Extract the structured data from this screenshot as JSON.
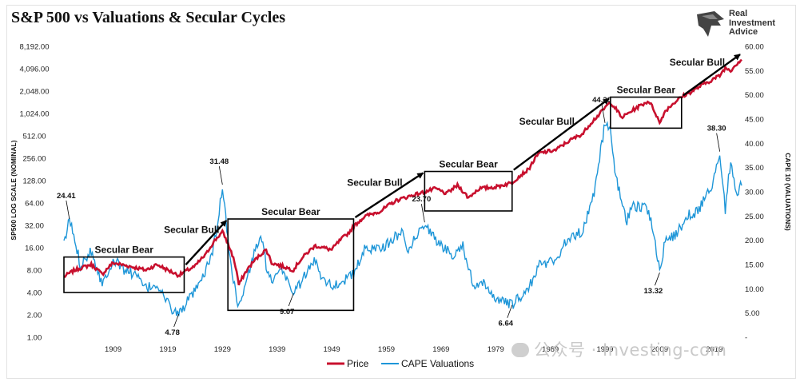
{
  "title": "S&P 500 vs Valuations & Secular Cycles",
  "logo": {
    "line1": "Real",
    "line2": "Investment",
    "line3": "Advice",
    "icon": "eagle-head-icon"
  },
  "watermark": "公众号 · Investing-com",
  "colors": {
    "price": "#c8102e",
    "cape": "#1e96d8",
    "annotation": "#000000"
  },
  "chart_data": {
    "type": "line",
    "title": "S&P 500 vs Valuations & Secular Cycles",
    "ylabel": "SP500 LOG SCALE (NOMINAL)",
    "y2label": "CAPE 10 (VALUATIONS)",
    "y_scale": "log2",
    "ylim": [
      1,
      8192
    ],
    "y2lim": [
      0,
      60
    ],
    "xlim": [
      1900,
      2024
    ],
    "grid": false,
    "legend": "bottom-center",
    "y_ticks": [
      "1.00",
      "2.00",
      "4.00",
      "8.00",
      "16.00",
      "32.00",
      "64.00",
      "128.00",
      "256.00",
      "512.00",
      "1,024.00",
      "2,048.00",
      "4,096.00",
      "8,192.00"
    ],
    "y2_ticks": [
      "-",
      "5.00",
      "10.00",
      "15.00",
      "20.00",
      "25.00",
      "30.00",
      "35.00",
      "40.00",
      "45.00",
      "50.00",
      "55.00",
      "60.00"
    ],
    "x_ticks": [
      "1909",
      "1919",
      "1929",
      "1939",
      "1949",
      "1959",
      "1969",
      "1979",
      "1989",
      "1999",
      "2009",
      "2019"
    ],
    "series": [
      {
        "name": "Price",
        "axis": "left",
        "x": [
          1900,
          1902,
          1905,
          1907,
          1909,
          1912,
          1915,
          1917,
          1919,
          1921,
          1924,
          1926,
          1929,
          1930,
          1932,
          1934,
          1937,
          1938,
          1942,
          1946,
          1949,
          1952,
          1955,
          1958,
          1961,
          1966,
          1968,
          1970,
          1972,
          1974,
          1976,
          1979,
          1982,
          1985,
          1987,
          1990,
          1995,
          1998,
          2000,
          2002,
          2003,
          2007,
          2009,
          2010,
          2013,
          2015,
          2018,
          2020,
          2021,
          2022,
          2024
        ],
        "y": [
          6.5,
          8,
          9.5,
          7,
          10,
          9,
          8,
          9.5,
          8,
          6.8,
          9,
          13,
          26,
          18,
          5,
          9,
          15,
          10,
          8,
          17,
          15,
          25,
          42,
          50,
          70,
          90,
          100,
          85,
          110,
          75,
          100,
          105,
          120,
          180,
          300,
          330,
          550,
          1000,
          1450,
          900,
          1000,
          1500,
          750,
          1100,
          1700,
          2050,
          2750,
          3300,
          4200,
          3900,
          5500
        ]
      },
      {
        "name": "CAPE Valuations",
        "axis": "right",
        "x": [
          1900,
          1901,
          1902,
          1903,
          1905,
          1907,
          1909,
          1911,
          1913,
          1915,
          1917,
          1919,
          1920,
          1921,
          1923,
          1925,
          1927,
          1928,
          1929,
          1930,
          1931,
          1932,
          1933,
          1935,
          1936,
          1937,
          1938,
          1940,
          1942,
          1946,
          1947,
          1949,
          1950,
          1953,
          1955,
          1959,
          1962,
          1963,
          1966,
          1968,
          1971,
          1973,
          1975,
          1977,
          1979,
          1981,
          1982,
          1985,
          1987,
          1990,
          1992,
          1995,
          1997,
          1999,
          2000,
          2001,
          2003,
          2004,
          2006,
          2007,
          2008,
          2009,
          2010,
          2012,
          2014,
          2016,
          2018,
          2019,
          2020,
          2021,
          2022,
          2023,
          2024
        ],
        "y": [
          19,
          24.41,
          20,
          15,
          18,
          11,
          16,
          14,
          13,
          10,
          11,
          7,
          5.5,
          4.78,
          8,
          11,
          17,
          22,
          31.48,
          20,
          12,
          6,
          10,
          18,
          21,
          15,
          11,
          14,
          9.07,
          16,
          13,
          10.5,
          11,
          13,
          18,
          19,
          22,
          18,
          23.7,
          20,
          17,
          19,
          10,
          11,
          8,
          7,
          6.64,
          10,
          15,
          16,
          20,
          22,
          30,
          44.2,
          42,
          33,
          24,
          27,
          27,
          26,
          21,
          13.32,
          20,
          21,
          25,
          26,
          30,
          33,
          38.3,
          26,
          37,
          29,
          32
        ]
      }
    ],
    "annotations": [
      {
        "text": "24.41",
        "x": 1901,
        "y": 24.41,
        "axis": "right"
      },
      {
        "text": "4.78",
        "x": 1921,
        "y": 4.78,
        "axis": "right"
      },
      {
        "text": "31.48",
        "x": 1929,
        "y": 31.48,
        "axis": "right"
      },
      {
        "text": "9.07",
        "x": 1942,
        "y": 9.07,
        "axis": "right"
      },
      {
        "text": "23.70",
        "x": 1966,
        "y": 23.7,
        "axis": "right"
      },
      {
        "text": "6.64",
        "x": 1982,
        "y": 6.64,
        "axis": "right"
      },
      {
        "text": "44.20",
        "x": 1999,
        "y": 44.2,
        "axis": "right"
      },
      {
        "text": "13.32",
        "x": 2009,
        "y": 13.32,
        "axis": "right"
      },
      {
        "text": "38.30",
        "x": 2020,
        "y": 38.3,
        "axis": "right"
      }
    ],
    "cycles": [
      {
        "label": "Secular Bear",
        "kind": "bear",
        "x": [
          1900,
          1922
        ],
        "y": [
          4,
          12
        ]
      },
      {
        "label": "Secular Bull",
        "kind": "bull",
        "x": [
          1922,
          1930
        ],
        "y": [
          9,
          39
        ]
      },
      {
        "label": "Secular Bear",
        "kind": "bear",
        "x": [
          1930,
          1953
        ],
        "y": [
          2.3,
          39
        ]
      },
      {
        "label": "Secular Bull",
        "kind": "bull",
        "x": [
          1953,
          1966
        ],
        "y": [
          39,
          170
        ]
      },
      {
        "label": "Secular Bear",
        "kind": "bear",
        "x": [
          1966,
          1982
        ],
        "y": [
          50,
          170
        ]
      },
      {
        "label": "Secular Bull",
        "kind": "bull",
        "x": [
          1982,
          2000
        ],
        "y": [
          170,
          1700
        ]
      },
      {
        "label": "Secular Bear",
        "kind": "bear",
        "x": [
          2000,
          2013
        ],
        "y": [
          650,
          1700
        ]
      },
      {
        "label": "Secular Bull",
        "kind": "bull",
        "x": [
          2013,
          2024
        ],
        "y": [
          1700,
          6700
        ]
      }
    ]
  },
  "legend": {
    "price_label": "Price",
    "cape_label": "CAPE Valuations"
  }
}
